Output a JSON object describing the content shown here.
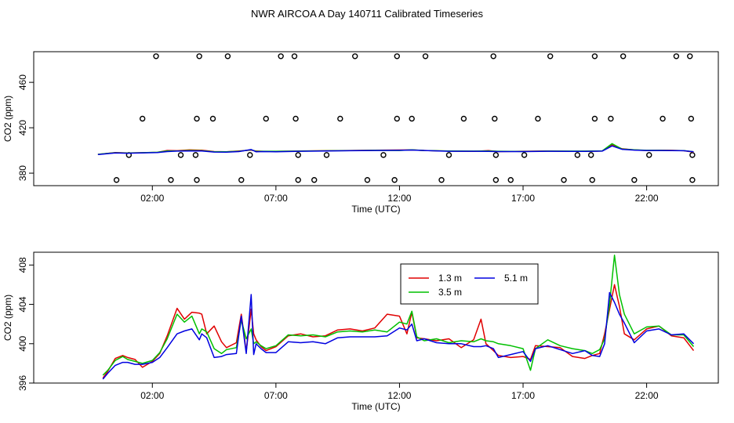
{
  "page_title": "NWR AIRCOA A  Day 140711  Calibrated Timeseries",
  "colors": {
    "red": "#e00000",
    "green": "#00c000",
    "blue": "#0000e0",
    "black": "#000000"
  },
  "chart_data": [
    {
      "type": "scatter+line",
      "xlabel": "Time (UTC)",
      "ylabel": "CO2 (ppm)",
      "x_unit": "hours UTC",
      "xlim": [
        -2.8,
        24.9
      ],
      "ylim": [
        369,
        487
      ],
      "x_ticks": [
        {
          "v": 2,
          "label": "02:00"
        },
        {
          "v": 7,
          "label": "07:00"
        },
        {
          "v": 12,
          "label": "12:00"
        },
        {
          "v": 17,
          "label": "17:00"
        },
        {
          "v": 22,
          "label": "22:00"
        }
      ],
      "y_ticks": [
        {
          "v": 380,
          "label": "380"
        },
        {
          "v": 420,
          "label": "420"
        },
        {
          "v": 460,
          "label": "460"
        }
      ],
      "calibration_points": [
        {
          "x": 2.15,
          "y": 483
        },
        {
          "x": 3.9,
          "y": 483
        },
        {
          "x": 5.05,
          "y": 483
        },
        {
          "x": 7.2,
          "y": 483
        },
        {
          "x": 7.75,
          "y": 483
        },
        {
          "x": 10.2,
          "y": 483
        },
        {
          "x": 11.9,
          "y": 483
        },
        {
          "x": 13.05,
          "y": 483
        },
        {
          "x": 15.8,
          "y": 483
        },
        {
          "x": 18.1,
          "y": 483
        },
        {
          "x": 19.9,
          "y": 483
        },
        {
          "x": 21.05,
          "y": 483
        },
        {
          "x": 23.2,
          "y": 483
        },
        {
          "x": 23.75,
          "y": 483
        },
        {
          "x": 1.6,
          "y": 428
        },
        {
          "x": 3.8,
          "y": 428
        },
        {
          "x": 4.45,
          "y": 428
        },
        {
          "x": 6.6,
          "y": 428
        },
        {
          "x": 7.8,
          "y": 428
        },
        {
          "x": 9.6,
          "y": 428
        },
        {
          "x": 11.9,
          "y": 428
        },
        {
          "x": 12.5,
          "y": 428
        },
        {
          "x": 14.6,
          "y": 428
        },
        {
          "x": 15.85,
          "y": 428
        },
        {
          "x": 17.6,
          "y": 428
        },
        {
          "x": 19.9,
          "y": 428
        },
        {
          "x": 20.55,
          "y": 428
        },
        {
          "x": 22.65,
          "y": 428
        },
        {
          "x": 23.8,
          "y": 428
        },
        {
          "x": 1.05,
          "y": 396
        },
        {
          "x": 3.15,
          "y": 396
        },
        {
          "x": 3.75,
          "y": 396
        },
        {
          "x": 5.95,
          "y": 396
        },
        {
          "x": 7.9,
          "y": 396
        },
        {
          "x": 9.05,
          "y": 396
        },
        {
          "x": 11.35,
          "y": 396
        },
        {
          "x": 14.0,
          "y": 396
        },
        {
          "x": 15.9,
          "y": 396
        },
        {
          "x": 17.05,
          "y": 396
        },
        {
          "x": 19.2,
          "y": 396
        },
        {
          "x": 19.75,
          "y": 396
        },
        {
          "x": 22.1,
          "y": 396
        },
        {
          "x": 23.85,
          "y": 396
        },
        {
          "x": 0.55,
          "y": 374
        },
        {
          "x": 2.75,
          "y": 374
        },
        {
          "x": 3.8,
          "y": 374
        },
        {
          "x": 5.6,
          "y": 374
        },
        {
          "x": 7.9,
          "y": 374
        },
        {
          "x": 8.55,
          "y": 374
        },
        {
          "x": 10.7,
          "y": 374
        },
        {
          "x": 11.8,
          "y": 374
        },
        {
          "x": 13.7,
          "y": 374
        },
        {
          "x": 15.9,
          "y": 374
        },
        {
          "x": 16.5,
          "y": 374
        },
        {
          "x": 18.65,
          "y": 374
        },
        {
          "x": 19.8,
          "y": 374
        },
        {
          "x": 21.5,
          "y": 374
        },
        {
          "x": 23.85,
          "y": 374
        }
      ],
      "series": [
        {
          "color": "red",
          "x": [
            -0.2,
            0.5,
            1.0,
            1.5,
            2.2,
            2.6,
            3.0,
            3.5,
            4.0,
            4.5,
            5.0,
            5.5,
            6.0,
            6.2,
            6.5,
            7.0,
            8.0,
            9.0,
            10.0,
            11.0,
            12.0,
            12.5,
            13.0,
            14.0,
            15.0,
            15.6,
            16.0,
            17.0,
            18.0,
            19.0,
            19.5,
            20.2,
            20.6,
            21.0,
            21.5,
            22.0,
            22.5,
            23.0,
            23.5,
            23.9
          ],
          "y": [
            396.5,
            398.2,
            397.8,
            398.0,
            398.3,
            400.0,
            399.8,
            400.5,
            400.2,
            399.0,
            398.8,
            399.5,
            400.3,
            399.5,
            399.2,
            399.2,
            399.5,
            399.8,
            400.0,
            400.2,
            400.4,
            400.5,
            400.0,
            399.4,
            399.2,
            399.9,
            399.0,
            399.3,
            399.5,
            399.2,
            399.3,
            399.5,
            405.0,
            401.5,
            400.5,
            400.0,
            400.2,
            400.1,
            399.8,
            398.5
          ]
        },
        {
          "color": "green",
          "x": [
            -0.2,
            0.5,
            1.0,
            1.5,
            2.2,
            2.6,
            3.0,
            3.5,
            4.0,
            4.5,
            5.0,
            5.5,
            6.0,
            6.2,
            6.5,
            7.0,
            8.0,
            9.0,
            10.0,
            11.0,
            12.0,
            12.5,
            13.0,
            14.0,
            15.0,
            15.6,
            16.0,
            17.0,
            18.0,
            19.0,
            19.5,
            20.2,
            20.6,
            21.0,
            21.5,
            22.0,
            22.5,
            23.0,
            23.5,
            23.9
          ],
          "y": [
            396.6,
            398.0,
            397.7,
            398.0,
            398.4,
            399.6,
            399.6,
            400.0,
            399.8,
            398.9,
            398.8,
            399.3,
            400.6,
            399.2,
            399.3,
            399.3,
            399.4,
            399.7,
            399.9,
            400.1,
            400.0,
            400.6,
            400.0,
            399.5,
            399.4,
            399.5,
            399.3,
            399.1,
            399.4,
            399.4,
            399.4,
            399.6,
            406.0,
            401.2,
            400.6,
            400.1,
            400.1,
            400.0,
            399.9,
            398.8
          ]
        },
        {
          "color": "blue",
          "x": [
            -0.2,
            0.5,
            1.0,
            1.5,
            2.2,
            2.6,
            3.0,
            3.5,
            4.0,
            4.5,
            5.0,
            5.5,
            6.0,
            6.2,
            6.5,
            7.0,
            8.0,
            9.0,
            10.0,
            11.0,
            12.0,
            12.5,
            13.0,
            14.0,
            15.0,
            15.6,
            16.0,
            17.0,
            18.0,
            19.0,
            19.5,
            20.2,
            20.6,
            21.0,
            21.5,
            22.0,
            22.5,
            23.0,
            23.5,
            23.9
          ],
          "y": [
            396.4,
            397.8,
            397.6,
            397.8,
            398.2,
            399.0,
            399.4,
            399.6,
            399.6,
            398.6,
            398.5,
            399.0,
            400.8,
            398.8,
            399.0,
            398.9,
            399.3,
            399.5,
            399.8,
            400.0,
            400.1,
            400.4,
            400.0,
            399.3,
            399.3,
            399.2,
            399.0,
            399.0,
            399.3,
            399.2,
            399.2,
            399.4,
            404.0,
            401.0,
            400.3,
            400.0,
            400.0,
            399.9,
            399.8,
            398.9
          ]
        }
      ]
    },
    {
      "type": "line",
      "xlabel": "Time (UTC)",
      "ylabel": "CO2 (ppm)",
      "x_unit": "hours UTC",
      "xlim": [
        -2.8,
        24.9
      ],
      "ylim": [
        396,
        409.3
      ],
      "x_ticks": [
        {
          "v": 2,
          "label": "02:00"
        },
        {
          "v": 7,
          "label": "07:00"
        },
        {
          "v": 12,
          "label": "12:00"
        },
        {
          "v": 17,
          "label": "17:00"
        },
        {
          "v": 22,
          "label": "22:00"
        }
      ],
      "y_ticks": [
        {
          "v": 396,
          "label": "396"
        },
        {
          "v": 400,
          "label": "400"
        },
        {
          "v": 404,
          "label": "404"
        },
        {
          "v": 408,
          "label": "408"
        }
      ],
      "legend": {
        "placement": "top-right",
        "entries": [
          {
            "label": "1.3 m",
            "color": "red"
          },
          {
            "label": "5.1 m",
            "color": "blue"
          },
          {
            "label": "3.5 m",
            "color": "green"
          }
        ]
      },
      "series": [
        {
          "name": "1.3 m",
          "color": "red",
          "x": [
            0.0,
            0.2,
            0.5,
            0.8,
            1.0,
            1.3,
            1.6,
            2.0,
            2.3,
            2.6,
            3.0,
            3.3,
            3.6,
            3.9,
            4.0,
            4.2,
            4.5,
            4.8,
            5.0,
            5.4,
            5.6,
            5.8,
            6.0,
            6.1,
            6.2,
            6.4,
            6.6,
            7.0,
            7.5,
            8.0,
            8.5,
            9.0,
            9.5,
            10.0,
            10.5,
            11.0,
            11.5,
            12.0,
            12.3,
            12.5,
            12.7,
            13.0,
            13.5,
            14.0,
            14.5,
            15.0,
            15.3,
            15.5,
            15.8,
            16.0,
            16.5,
            17.0,
            17.3,
            17.5,
            18.0,
            18.5,
            19.0,
            19.5,
            19.8,
            20.1,
            20.3,
            20.5,
            20.7,
            20.9,
            21.1,
            21.5,
            22.0,
            22.5,
            23.0,
            23.5,
            23.9
          ],
          "y": [
            396.5,
            397.2,
            398.5,
            398.8,
            398.6,
            398.4,
            397.6,
            398.2,
            399.0,
            400.8,
            403.6,
            402.5,
            403.2,
            403.1,
            403.0,
            401.0,
            401.8,
            400.2,
            399.6,
            400.1,
            403.0,
            399.2,
            403.5,
            401.0,
            400.4,
            399.7,
            399.3,
            399.7,
            400.8,
            401.0,
            400.7,
            400.8,
            401.4,
            401.5,
            401.3,
            401.6,
            403.0,
            402.8,
            401.0,
            403.2,
            400.6,
            400.5,
            400.3,
            400.5,
            399.6,
            400.4,
            402.5,
            400.0,
            399.3,
            398.8,
            398.6,
            398.7,
            398.4,
            399.8,
            399.7,
            399.6,
            398.7,
            398.5,
            398.8,
            399.0,
            401.0,
            403.5,
            406.0,
            403.8,
            401.0,
            400.4,
            401.5,
            401.8,
            400.8,
            400.6,
            399.3
          ]
        },
        {
          "name": "3.5 m",
          "color": "green",
          "x": [
            0.0,
            0.2,
            0.5,
            0.8,
            1.0,
            1.3,
            1.6,
            2.0,
            2.3,
            2.6,
            3.0,
            3.3,
            3.6,
            3.9,
            4.0,
            4.2,
            4.5,
            4.8,
            5.0,
            5.4,
            5.6,
            5.8,
            6.0,
            6.1,
            6.2,
            6.4,
            6.6,
            7.0,
            7.5,
            8.0,
            8.5,
            9.0,
            9.5,
            10.0,
            10.5,
            11.0,
            11.5,
            12.0,
            12.3,
            12.5,
            12.7,
            13.0,
            13.5,
            14.0,
            14.5,
            15.0,
            15.3,
            15.5,
            15.8,
            16.0,
            16.5,
            17.0,
            17.3,
            17.5,
            18.0,
            18.5,
            19.0,
            19.5,
            19.8,
            20.1,
            20.3,
            20.5,
            20.7,
            20.9,
            21.1,
            21.5,
            22.0,
            22.5,
            23.0,
            23.5,
            23.9
          ],
          "y": [
            396.8,
            397.3,
            398.3,
            398.7,
            398.4,
            398.2,
            398.0,
            398.3,
            399.1,
            400.5,
            403.0,
            402.2,
            402.8,
            401.0,
            401.5,
            401.2,
            399.5,
            399.0,
            399.4,
            399.6,
            402.4,
            400.5,
            401.5,
            400.0,
            400.2,
            399.8,
            399.5,
            399.8,
            400.9,
            400.8,
            400.9,
            400.7,
            401.2,
            401.3,
            401.2,
            401.4,
            401.2,
            402.2,
            402.0,
            403.3,
            400.7,
            400.3,
            400.5,
            400.1,
            400.3,
            400.2,
            400.5,
            400.3,
            400.2,
            400.0,
            399.8,
            399.5,
            397.3,
            399.5,
            400.4,
            399.8,
            399.5,
            399.3,
            399.0,
            399.4,
            400.5,
            404.0,
            409.0,
            405.0,
            403.0,
            401.0,
            401.7,
            401.8,
            400.9,
            400.9,
            399.7
          ]
        },
        {
          "name": "5.1 m",
          "color": "blue",
          "x": [
            0.0,
            0.2,
            0.5,
            0.8,
            1.0,
            1.3,
            1.6,
            2.0,
            2.3,
            2.6,
            3.0,
            3.3,
            3.6,
            3.9,
            4.0,
            4.2,
            4.5,
            4.8,
            5.0,
            5.4,
            5.6,
            5.8,
            6.0,
            6.1,
            6.2,
            6.4,
            6.6,
            7.0,
            7.5,
            8.0,
            8.5,
            9.0,
            9.5,
            10.0,
            10.5,
            11.0,
            11.5,
            12.0,
            12.3,
            12.5,
            12.7,
            13.0,
            13.5,
            14.0,
            14.5,
            15.0,
            15.3,
            15.5,
            15.8,
            16.0,
            16.5,
            17.0,
            17.3,
            17.5,
            18.0,
            18.5,
            19.0,
            19.5,
            19.8,
            20.1,
            20.3,
            20.5,
            20.7,
            20.9,
            21.1,
            21.5,
            22.0,
            22.5,
            23.0,
            23.5,
            23.9
          ],
          "y": [
            396.4,
            397.0,
            397.8,
            398.1,
            398.1,
            397.9,
            397.9,
            398.1,
            398.6,
            399.6,
            401.0,
            401.3,
            401.5,
            400.4,
            401.0,
            400.6,
            398.6,
            398.7,
            398.9,
            399.0,
            402.8,
            399.0,
            405.0,
            398.9,
            400.0,
            399.5,
            399.1,
            399.1,
            400.2,
            400.1,
            400.2,
            400.0,
            400.6,
            400.7,
            400.7,
            400.7,
            400.8,
            401.6,
            401.4,
            402.0,
            400.3,
            400.5,
            400.1,
            400.0,
            400.0,
            399.7,
            399.7,
            399.8,
            399.5,
            398.6,
            398.9,
            399.2,
            398.2,
            399.5,
            399.8,
            399.4,
            399.0,
            399.3,
            398.8,
            398.7,
            400.0,
            405.2,
            404.2,
            403.0,
            402.1,
            400.1,
            401.3,
            401.5,
            400.9,
            401.0,
            400.0
          ]
        }
      ]
    }
  ]
}
